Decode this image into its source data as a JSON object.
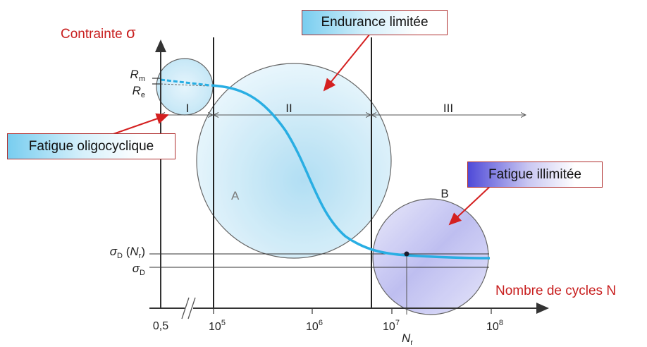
{
  "title": {
    "ylabel_text": "Contrainte",
    "ylabel_symbol": "σ",
    "xlabel": "Nombre de cycles N"
  },
  "callouts": {
    "endurance_limitee": "Endurance limitée",
    "fatigue_oligocyclique": "Fatigue oligocyclique",
    "fatigue_illimitee": "Fatigue illimitée"
  },
  "regions": {
    "r1": "I",
    "r2": "II",
    "r3": "III"
  },
  "circle_labels": {
    "a": "A",
    "b": "B"
  },
  "y_ticks": {
    "rm_main": "R",
    "rm_sub": "m",
    "re_main": "R",
    "re_sub": "e",
    "sdn_main": "σ",
    "sdn_sub": "D",
    "sdn_paren_open": " (",
    "sdn_n": "N",
    "sdn_n_sub": "r",
    "sdn_paren_close": ")",
    "sd_main": "σ",
    "sd_sub": "D"
  },
  "x_ticks": {
    "t0": "0,5",
    "t1_base": "10",
    "t1_exp": "5",
    "t2_base": "10",
    "t2_exp": "6",
    "t3_base": "10",
    "t3_exp": "7",
    "t4_base": "10",
    "t4_exp": "8",
    "nr_main": "N",
    "nr_sub": "r",
    "break": "//"
  },
  "colors": {
    "curve": "#29aee3",
    "axes": "#333333",
    "callout_border": "#b03030",
    "arrow_red": "#d42020",
    "label_red": "#c81e1e",
    "circle_fill": "#cdeaf7",
    "circle_b_fill": "#c9c9f3"
  },
  "icons": {
    "axis_arrow": "arrow-head",
    "callout_pointer": "red-arrow"
  }
}
